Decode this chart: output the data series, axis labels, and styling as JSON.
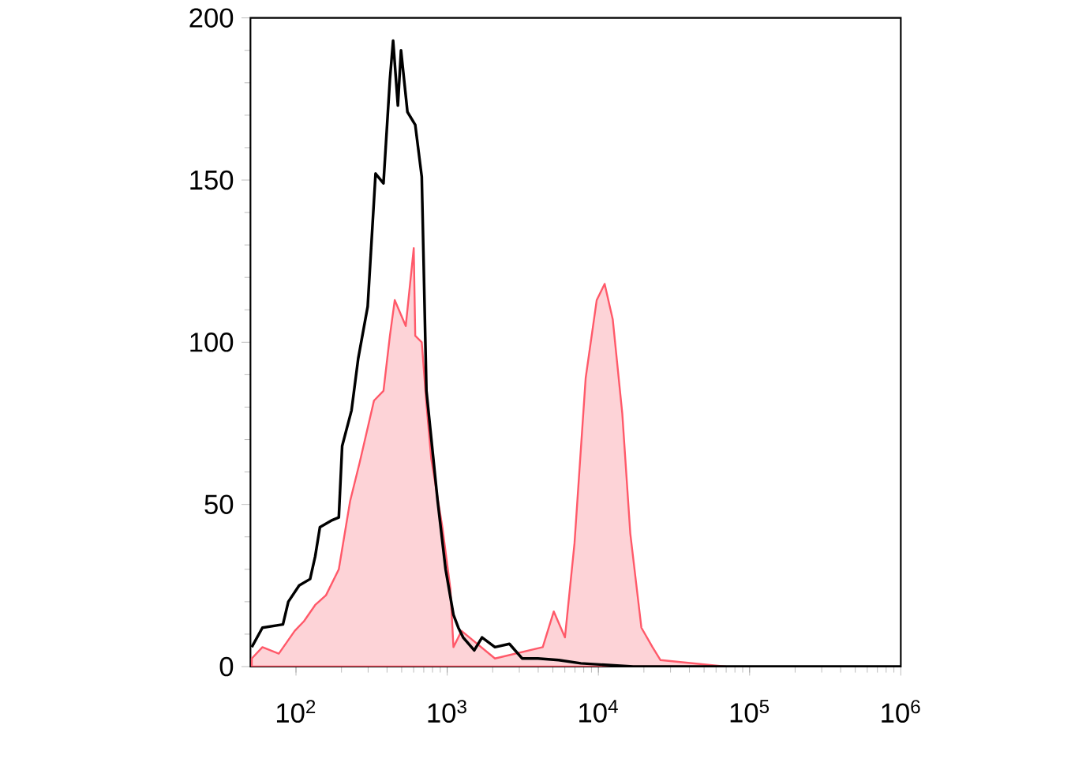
{
  "chart_data": {
    "type": "line",
    "log": "x",
    "grid": false,
    "xlim": [
      50,
      1000000
    ],
    "ylim": [
      0,
      200
    ],
    "xticks": [
      {
        "value": 100,
        "label": "10$^{2}$"
      },
      {
        "value": 1000,
        "label": "10$^{3}$"
      },
      {
        "value": 10000,
        "label": "10$^{4}$"
      },
      {
        "value": 100000,
        "label": "10$^{5}$"
      },
      {
        "value": 1000000,
        "label": "10$^{6}$"
      }
    ],
    "yticks": [
      0,
      50,
      100,
      150,
      200
    ],
    "series": [
      {
        "color": "#000000",
        "x": [
          51,
          60,
          82,
          89,
          105,
          124,
          134,
          144,
          171,
          192,
          202,
          233,
          258,
          298,
          336,
          379,
          418,
          439,
          472,
          495,
          546,
          615,
          679,
          729,
          865,
          976,
          1100,
          1185,
          1275,
          1510,
          1700,
          2070,
          2580,
          3130,
          3980,
          5460,
          7660,
          17000,
          1000000
        ],
        "values": [
          6,
          12,
          13,
          20,
          25,
          27,
          34,
          43,
          45,
          46,
          68,
          79,
          95,
          111,
          152,
          149,
          181,
          193,
          173,
          190,
          171,
          167,
          151,
          85,
          51,
          30,
          16,
          12,
          9,
          5,
          9,
          6,
          7,
          2.5,
          2.5,
          2,
          1,
          0,
          0
        ]
      },
      {
        "type": "area",
        "color": "#fdd3d7",
        "x": [
          51,
          60,
          77,
          98,
          113,
          134,
          158,
          192,
          228,
          264,
          328,
          379,
          418,
          450,
          532,
          601,
          615,
          679,
          729,
          785,
          929,
          1050,
          1100,
          1245,
          2070,
          4285,
          5070,
          6010,
          6950,
          8240,
          9750,
          11000,
          12450,
          14390,
          16260,
          19250,
          22800,
          25760,
          69500
        ],
        "values": [
          2.5,
          6,
          4,
          11,
          14,
          19,
          22,
          30,
          51,
          63,
          82,
          85,
          102,
          113,
          105,
          129,
          102,
          100,
          81,
          64,
          43,
          24,
          6,
          11,
          2.5,
          6,
          17,
          9,
          38,
          89,
          113,
          118,
          107,
          78,
          41,
          12,
          6,
          2,
          0
        ]
      }
    ]
  }
}
